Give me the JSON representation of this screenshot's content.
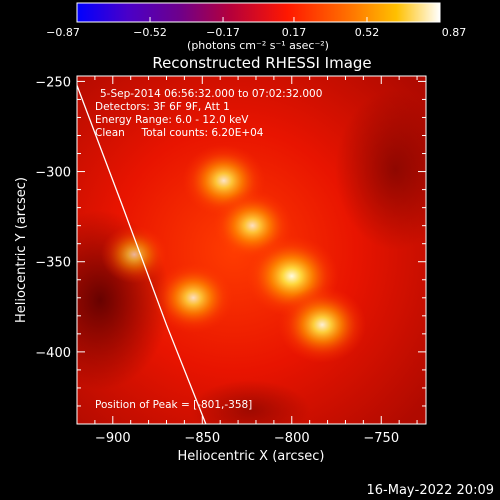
{
  "chart_data": {
    "type": "heatmap",
    "title": "Reconstructed RHESSI Image",
    "xlabel": "Heliocentric X (arcsec)",
    "ylabel": "Heliocentric Y (arcsec)",
    "xlim": [
      -920,
      -725
    ],
    "ylim": [
      -440,
      -247
    ],
    "x_ticks": [
      -900,
      -850,
      -800,
      -750
    ],
    "x_tick_labels": [
      "−900",
      "−850",
      "−800",
      "−750"
    ],
    "y_ticks": [
      -250,
      -300,
      -350,
      -400
    ],
    "y_tick_labels": [
      "−250",
      "−300",
      "−350",
      "−400"
    ],
    "colorbar": {
      "min": -0.87,
      "max": 0.87,
      "ticks": [
        -0.87,
        -0.52,
        -0.17,
        0.17,
        0.52,
        0.87
      ],
      "tick_labels": [
        "−0.87",
        "−0.52",
        "−0.17",
        "0.17",
        "0.52",
        "0.87"
      ],
      "unit_label": "(photons cm⁻² s⁻¹ asec⁻²)"
    },
    "annotations": {
      "time_range": "5-Sep-2014 06:56:32.000 to 07:02:32.000",
      "detectors": "Detectors: 3F 6F 9F, Att 1",
      "energy": "Energy Range: 6.0 - 12.0 keV",
      "method": "Clean     Total counts: 6.20E+04",
      "peak": "Position of Peak = [-801,-358]"
    },
    "sources": [
      {
        "x": -838,
        "y": -305,
        "peak": 0.7
      },
      {
        "x": -822,
        "y": -330,
        "peak": 0.66
      },
      {
        "x": -800,
        "y": -358,
        "peak": 0.87
      },
      {
        "x": -783,
        "y": -385,
        "peak": 0.78
      },
      {
        "x": -855,
        "y": -370,
        "peak": 0.66
      },
      {
        "x": -888,
        "y": -346,
        "peak": 0.42
      }
    ],
    "limb_points": [
      [
        -922,
        -247
      ],
      [
        -895,
        -318
      ],
      [
        -870,
        -385
      ],
      [
        -848,
        -440
      ]
    ],
    "timestamp": "16‑May‑2022 20:09"
  }
}
